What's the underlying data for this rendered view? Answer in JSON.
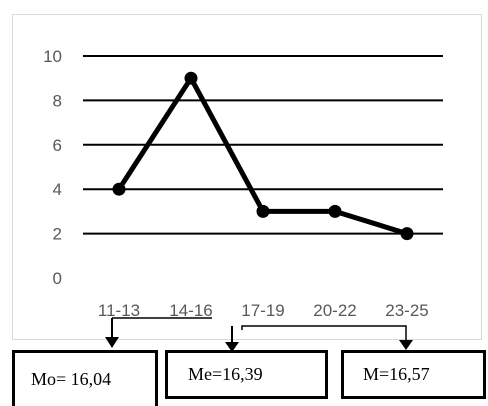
{
  "chart_data": {
    "type": "line",
    "categories": [
      "11-13",
      "14-16",
      "17-19",
      "20-22",
      "23-25"
    ],
    "series": [
      {
        "values": [
          4,
          9,
          3,
          3,
          2
        ]
      }
    ],
    "ylim": [
      0,
      10
    ],
    "yticks": [
      0,
      2,
      4,
      6,
      8,
      10
    ],
    "grid": true,
    "legend": "none",
    "colors": {
      "line": "#000000",
      "grid": "#000000",
      "tick_text": "#595959"
    }
  },
  "annotations": {
    "mode_label": "Mo= 16,04",
    "median_label": "Me=16,39",
    "mean_label": "M=16,57"
  }
}
